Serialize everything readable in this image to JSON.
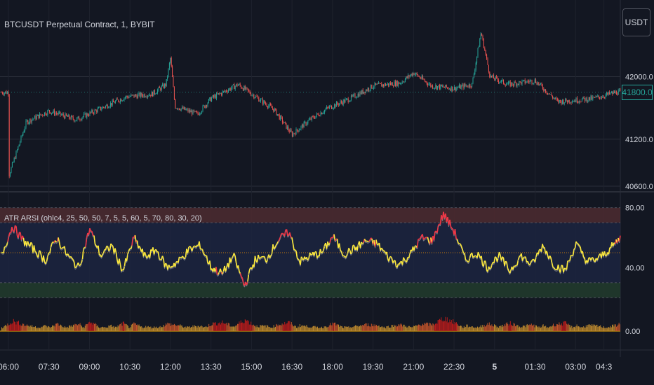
{
  "header": {
    "symbol_title": "BTCUSDT Perpetual Contract, 1, BYBIT",
    "currency_button": "USDT",
    "last_price": "41800.0"
  },
  "indicator": {
    "label": "ATR ARSI (ohlc4, 25, 50, 50, 7, 5, 5, 60, 5, 70, 80, 30, 20)"
  },
  "colors": {
    "background": "#131722",
    "grid": "#2a2e39",
    "candle_up": "#26a69a",
    "candle_down": "#ef5350",
    "rsi_yellow": "#ffeb3b",
    "rsi_red": "#f23645",
    "overbought_zone": "#4a2a30",
    "neutral_zone": "#1c2440",
    "oversold_zone": "#213a2c"
  },
  "chart_data": [
    {
      "type": "candlestick",
      "title": "BTCUSDT Perpetual Contract, 1, BYBIT",
      "ylabel": "USDT",
      "y_ticks": [
        "42000.0",
        "41200.0",
        "40600.0"
      ],
      "x_ticks": [
        "06:00",
        "07:30",
        "09:00",
        "10:30",
        "12:00",
        "13:30",
        "15:00",
        "16:30",
        "18:00",
        "19:30",
        "21:00",
        "22:30",
        "5",
        "01:30",
        "03:00",
        "04:3"
      ],
      "close_path": {
        "x": [
          "06:00",
          "06:40",
          "07:30",
          "08:30",
          "09:20",
          "10:20",
          "11:20",
          "11:50",
          "12:00",
          "12:10",
          "13:00",
          "13:30",
          "14:30",
          "15:00",
          "15:50",
          "16:30",
          "17:10",
          "17:50",
          "18:40",
          "19:30",
          "20:30",
          "21:00",
          "21:40",
          "22:30",
          "23:10",
          "23:30",
          "23:50",
          "00:30",
          "01:30",
          "02:20",
          "03:00",
          "03:40",
          "04:30"
        ],
        "price": [
          40720,
          41420,
          41560,
          41450,
          41580,
          41740,
          41780,
          41900,
          42240,
          41620,
          41520,
          41720,
          41900,
          41780,
          41580,
          41260,
          41450,
          41600,
          41720,
          41880,
          41920,
          42050,
          41880,
          41850,
          41900,
          42570,
          42000,
          41900,
          41950,
          41680,
          41700,
          41720,
          41800
        ]
      }
    },
    {
      "type": "line",
      "title": "ATR ARSI (ohlc4, 25, 50, 50, 7, 5, 5, 60, 5, 70, 80, 30, 20)",
      "y_ticks": [
        "80.00",
        "40.00"
      ],
      "levels": {
        "upper": 80,
        "overbought": 70,
        "mid": 50,
        "oversold": 30,
        "lower": 20
      },
      "series": [
        {
          "values": [
            48,
            68,
            58,
            52,
            45,
            60,
            48,
            40,
            66,
            48,
            55,
            38,
            60,
            47,
            52,
            40,
            44,
            52,
            55,
            40,
            36,
            48,
            28,
            46,
            46,
            58,
            64,
            44,
            48,
            50,
            61,
            49,
            53,
            58,
            56,
            47,
            42,
            49,
            60,
            58,
            76,
            64,
            45,
            50,
            40,
            48,
            38,
            48,
            42,
            55,
            42,
            38,
            56,
            44,
            46,
            52,
            60
          ]
        }
      ]
    },
    {
      "type": "bar",
      "title": "",
      "y_ticks": [
        "0.00"
      ]
    }
  ]
}
